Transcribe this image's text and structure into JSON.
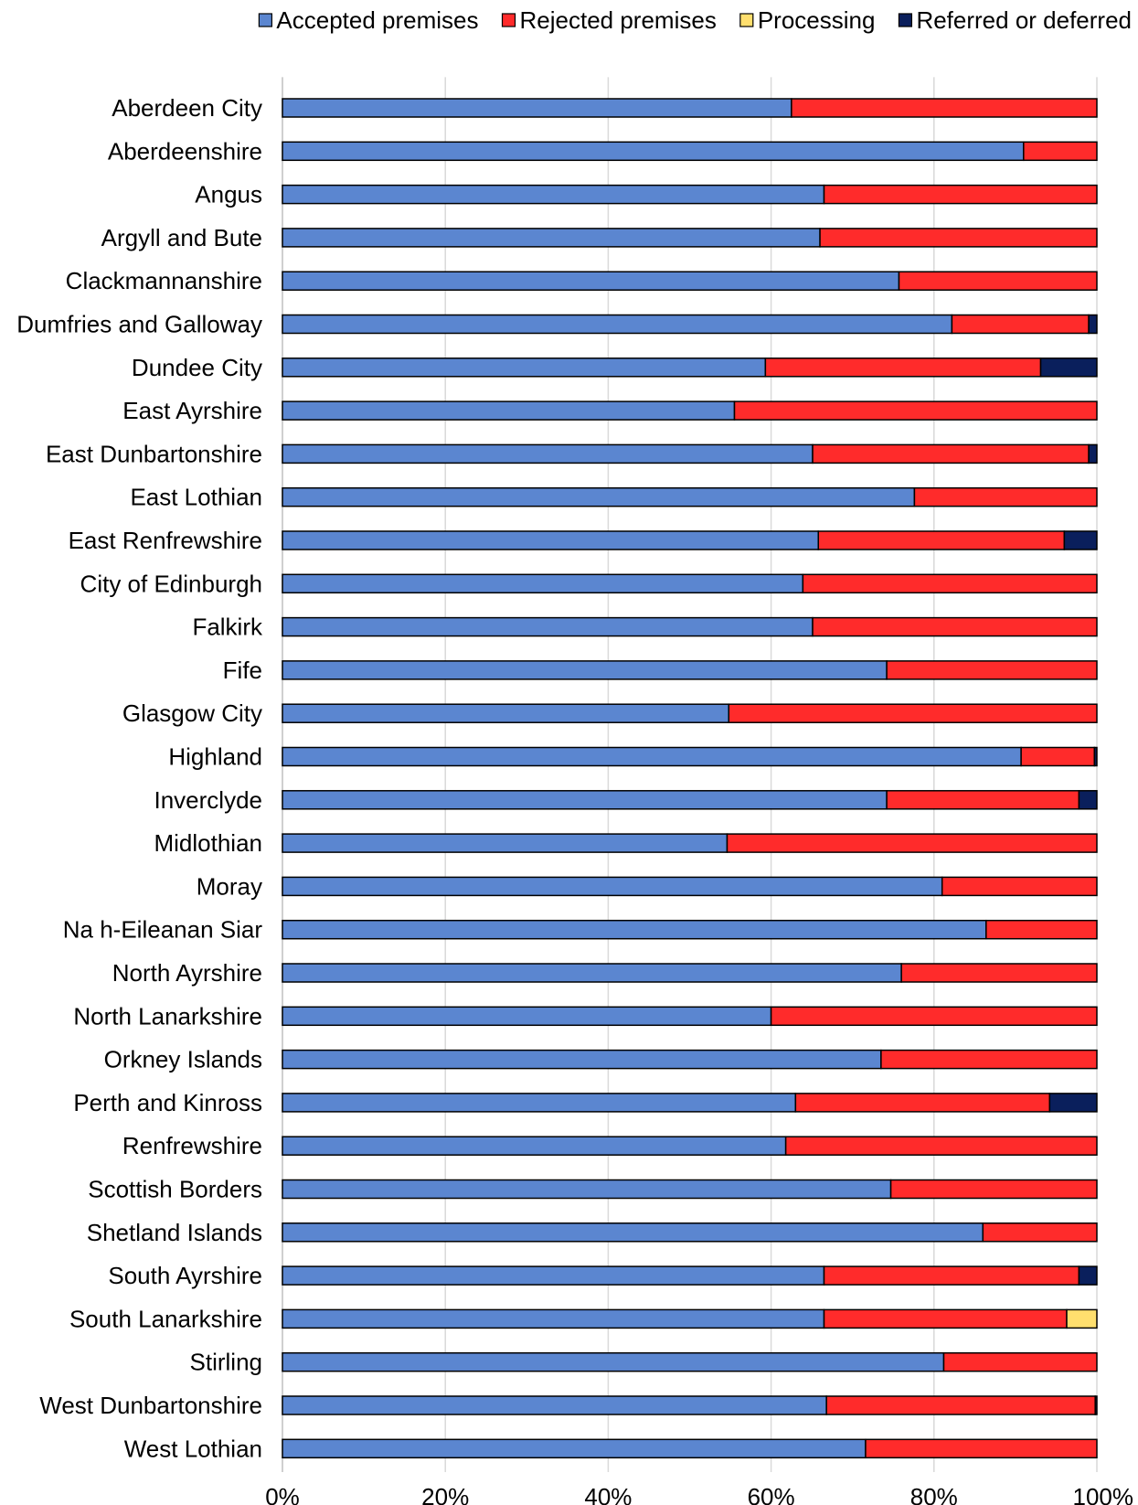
{
  "chart_data": {
    "type": "bar",
    "orientation": "horizontal",
    "stacked": true,
    "percent": true,
    "title": "",
    "xlabel": "",
    "ylabel": "",
    "xlim": [
      0,
      100
    ],
    "ticks": [
      0,
      20,
      40,
      60,
      80,
      100
    ],
    "tick_labels": [
      "0%",
      "20%",
      "40%",
      "60%",
      "80%",
      "100%"
    ],
    "grid": true,
    "legend_position": "top-right",
    "categories": [
      "Aberdeen City",
      "Aberdeenshire",
      "Angus",
      "Argyll and Bute",
      "Clackmannanshire",
      "Dumfries and Galloway",
      "Dundee City",
      "East Ayrshire",
      "East Dunbartonshire",
      "East Lothian",
      "East Renfrewshire",
      "City of Edinburgh",
      "Falkirk",
      "Fife",
      "Glasgow City",
      "Highland",
      "Inverclyde",
      "Midlothian",
      "Moray",
      "Na h-Eileanan Siar",
      "North Ayrshire",
      "North Lanarkshire",
      "Orkney Islands",
      "Perth and Kinross",
      "Renfrewshire",
      "Scottish Borders",
      "Shetland Islands",
      "South Ayrshire",
      "South Lanarkshire",
      "Stirling",
      "West Dunbartonshire",
      "West Lothian"
    ],
    "series": [
      {
        "name": "Accepted premises",
        "color": "#5b86d0",
        "values": [
          62.5,
          91.0,
          66.5,
          66.0,
          75.7,
          82.2,
          59.3,
          55.5,
          65.1,
          77.6,
          65.8,
          63.9,
          65.1,
          74.2,
          54.8,
          90.7,
          74.2,
          54.6,
          81.0,
          86.4,
          76.0,
          60.0,
          73.5,
          63.0,
          61.8,
          74.7,
          86.0,
          66.5,
          66.5,
          81.2,
          66.8,
          71.6
        ]
      },
      {
        "name": "Rejected premises",
        "color": "#ff2b2b",
        "values": [
          37.5,
          9.0,
          33.5,
          34.0,
          24.3,
          16.8,
          33.8,
          44.5,
          33.9,
          22.4,
          30.2,
          36.1,
          34.9,
          25.8,
          45.2,
          9.0,
          23.6,
          45.4,
          19.0,
          13.6,
          24.0,
          40.0,
          26.5,
          31.2,
          38.2,
          25.3,
          14.0,
          31.3,
          29.8,
          18.8,
          33.0,
          28.4
        ]
      },
      {
        "name": "Processing",
        "color": "#ffdf6e",
        "values": [
          0,
          0,
          0,
          0,
          0,
          0,
          0,
          0,
          0,
          0,
          0,
          0,
          0,
          0,
          0,
          0,
          0,
          0,
          0,
          0,
          0,
          0,
          0,
          0,
          0,
          0,
          0,
          0,
          3.7,
          0,
          0,
          0
        ]
      },
      {
        "name": "Referred or deferred",
        "color": "#0a1f5c",
        "values": [
          0,
          0,
          0,
          0,
          0,
          1.0,
          6.9,
          0,
          1.0,
          0,
          4.0,
          0,
          0,
          0,
          0,
          0.3,
          2.2,
          0,
          0,
          0,
          0,
          0,
          0,
          5.8,
          0,
          0,
          0,
          2.2,
          0,
          0,
          0.2,
          0
        ]
      }
    ]
  }
}
